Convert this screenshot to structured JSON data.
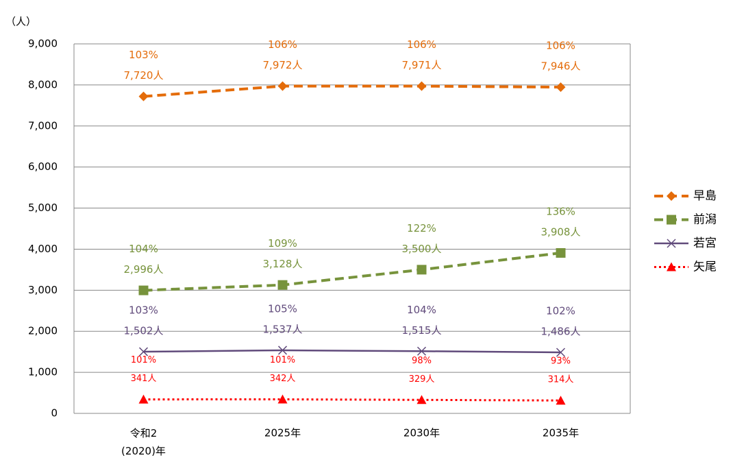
{
  "chart_data": {
    "type": "line",
    "y_axis_label": "（人）",
    "categories": [
      "令和2\n(2020)年",
      "2025年",
      "2030年",
      "2035年"
    ],
    "ylim": [
      0,
      9000
    ],
    "yticks": [
      0,
      {
        "value": 1000,
        "label": "1,000"
      },
      {
        "value": 2000,
        "label": "2,000"
      },
      {
        "value": 3000,
        "label": "3,000"
      },
      {
        "value": 4000,
        "label": "4,000"
      },
      {
        "value": 5000,
        "label": "5,000"
      },
      {
        "value": 6000,
        "label": "6,000"
      },
      {
        "value": 7000,
        "label": "7,000"
      },
      {
        "value": 8000,
        "label": "8,000"
      },
      {
        "value": 9000,
        "label": "9,000"
      }
    ],
    "grid": true,
    "legend": "right",
    "series": [
      {
        "name": "早島",
        "color": "#e46c0a",
        "marker": "diamond",
        "dash": "dashed",
        "values": [
          7720,
          7972,
          7971,
          7946
        ],
        "value_labels": [
          "7,720人",
          "7,972人",
          "7,971人",
          "7,946人"
        ],
        "growth_labels": [
          "103%",
          "106%",
          "106%",
          "106%"
        ]
      },
      {
        "name": "前潟",
        "color": "#77933c",
        "marker": "square",
        "dash": "dashed",
        "values": [
          2996,
          3128,
          3500,
          3908
        ],
        "value_labels": [
          "2,996人",
          "3,128人",
          "3,500人",
          "3,908人"
        ],
        "growth_labels": [
          "104%",
          "109%",
          "122%",
          "136%"
        ]
      },
      {
        "name": "若宮",
        "color": "#604a7b",
        "marker": "cross",
        "dash": "solid",
        "values": [
          1502,
          1537,
          1515,
          1486
        ],
        "value_labels": [
          "1,502人",
          "1,537人",
          "1,515人",
          "1,486人"
        ],
        "growth_labels": [
          "103%",
          "105%",
          "104%",
          "102%"
        ]
      },
      {
        "name": "矢尾",
        "color": "#ff0000",
        "marker": "triangle",
        "dash": "dotted",
        "values": [
          341,
          342,
          329,
          314
        ],
        "value_labels": [
          "341人",
          "342人",
          "329人",
          "314人"
        ],
        "growth_labels": [
          "101%",
          "101%",
          "98%",
          "93%"
        ]
      }
    ]
  }
}
